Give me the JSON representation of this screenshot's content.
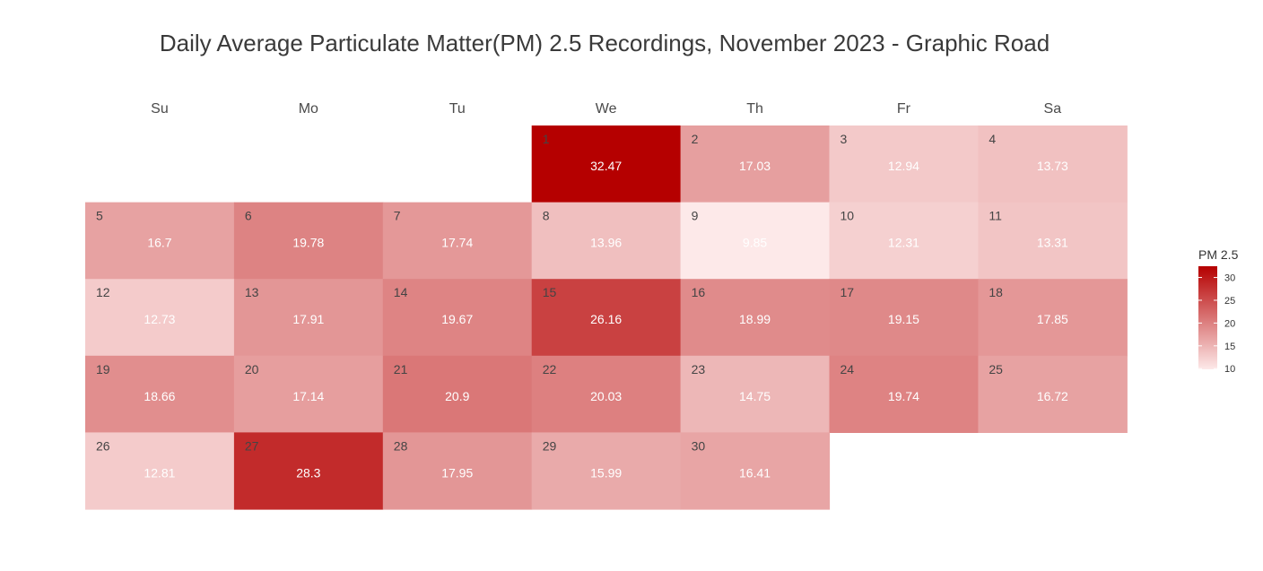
{
  "chart_data": {
    "type": "heatmap",
    "title": "Daily Average Particulate Matter(PM) 2.5 Recordings, November 2023 - Graphic Road",
    "weekdays": [
      "Su",
      "Mo",
      "Tu",
      "We",
      "Th",
      "Fr",
      "Sa"
    ],
    "first_weekday_index": 3,
    "days": [
      {
        "day": "1",
        "value": 32.47
      },
      {
        "day": "2",
        "value": 17.03
      },
      {
        "day": "3",
        "value": 12.94
      },
      {
        "day": "4",
        "value": 13.73
      },
      {
        "day": "5",
        "value": 16.7
      },
      {
        "day": "6",
        "value": 19.78
      },
      {
        "day": "7",
        "value": 17.74
      },
      {
        "day": "8",
        "value": 13.96
      },
      {
        "day": "9",
        "value": 9.85
      },
      {
        "day": "10",
        "value": 12.31
      },
      {
        "day": "11",
        "value": 13.31
      },
      {
        "day": "12",
        "value": 12.73
      },
      {
        "day": "13",
        "value": 17.91
      },
      {
        "day": "14",
        "value": 19.67
      },
      {
        "day": "15",
        "value": 26.16
      },
      {
        "day": "16",
        "value": 18.99
      },
      {
        "day": "17",
        "value": 19.15
      },
      {
        "day": "18",
        "value": 17.85
      },
      {
        "day": "19",
        "value": 18.66
      },
      {
        "day": "20",
        "value": 17.14
      },
      {
        "day": "21",
        "value": 20.9
      },
      {
        "day": "22",
        "value": 20.03
      },
      {
        "day": "23",
        "value": 14.75
      },
      {
        "day": "24",
        "value": 19.74
      },
      {
        "day": "25",
        "value": 16.72
      },
      {
        "day": "26",
        "value": 12.81
      },
      {
        "day": "27",
        "value": 28.3
      },
      {
        "day": "28",
        "value": 17.95
      },
      {
        "day": "29",
        "value": 15.99
      },
      {
        "day": "30",
        "value": 16.41
      }
    ],
    "legend": {
      "title": "PM 2.5",
      "ticks": [
        10,
        15,
        20,
        25,
        30
      ],
      "range": [
        9.85,
        32.47
      ],
      "color_low": "#fde9e9",
      "color_high": "#b50000"
    }
  }
}
